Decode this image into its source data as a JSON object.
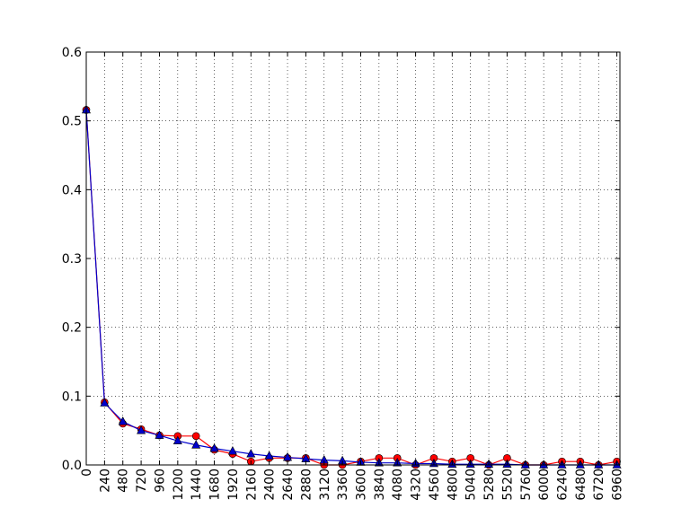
{
  "chart_data": {
    "type": "line",
    "title": "",
    "xlabel": "",
    "ylabel": "",
    "xlim": [
      0,
      7000
    ],
    "ylim": [
      0,
      0.6
    ],
    "grid": true,
    "x_ticks": [
      0,
      240,
      480,
      720,
      960,
      1200,
      1440,
      1680,
      1920,
      2160,
      2400,
      2640,
      2880,
      3120,
      3360,
      3600,
      3840,
      4080,
      4320,
      4560,
      4800,
      5040,
      5280,
      5520,
      5760,
      6000,
      6240,
      6480,
      6720,
      6960
    ],
    "y_ticks": [
      0.0,
      0.1,
      0.2,
      0.3,
      0.4,
      0.5,
      0.6
    ],
    "x": [
      0,
      240,
      480,
      720,
      960,
      1200,
      1440,
      1680,
      1920,
      2160,
      2400,
      2640,
      2880,
      3120,
      3360,
      3600,
      3840,
      4080,
      4320,
      4560,
      4800,
      5040,
      5280,
      5520,
      5760,
      6000,
      6240,
      6480,
      6720,
      6960
    ],
    "series": [
      {
        "color": "#ff0000",
        "marker": "circle",
        "values": [
          0.516,
          0.091,
          0.06,
          0.052,
          0.043,
          0.042,
          0.042,
          0.022,
          0.016,
          0.005,
          0.01,
          0.01,
          0.01,
          0.0,
          0.0,
          0.005,
          0.01,
          0.01,
          0.0,
          0.01,
          0.005,
          0.01,
          0.0,
          0.01,
          0.0,
          0.0,
          0.005,
          0.005,
          0.0,
          0.005
        ]
      },
      {
        "color": "#0000cc",
        "marker": "triangle",
        "values": [
          0.516,
          0.09,
          0.063,
          0.05,
          0.043,
          0.035,
          0.029,
          0.024,
          0.02,
          0.016,
          0.013,
          0.011,
          0.009,
          0.007,
          0.006,
          0.004,
          0.003,
          0.003,
          0.002,
          0.002,
          0.001,
          0.001,
          0.001,
          0.001,
          0.0,
          0.0,
          0.0,
          0.0,
          0.0,
          0.0
        ]
      }
    ]
  }
}
